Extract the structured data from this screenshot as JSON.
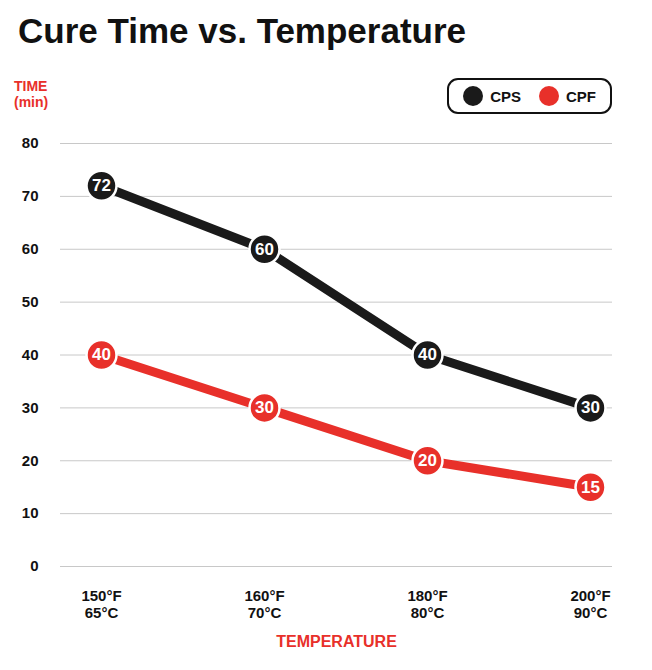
{
  "chart_data": {
    "type": "line",
    "title": "Cure Time vs. Temperature",
    "x_label": "TEMPERATURE",
    "y_label": "TIME\n(min)",
    "categories": [
      "150°F\n65°C",
      "160°F\n70°C",
      "180°F\n80°C",
      "200°F\n90°C"
    ],
    "series": [
      {
        "name": "CPS",
        "color": "#1a1a1a",
        "values": [
          72,
          60,
          40,
          30
        ]
      },
      {
        "name": "CPF",
        "color": "#e8302a",
        "values": [
          40,
          30,
          20,
          15
        ]
      }
    ],
    "ylim": [
      0,
      80
    ],
    "yticks": [
      0,
      10,
      20,
      30,
      40,
      50,
      60,
      70,
      80
    ],
    "grid": true,
    "legend": "top-right",
    "data_labels": true,
    "marker": "circle"
  }
}
